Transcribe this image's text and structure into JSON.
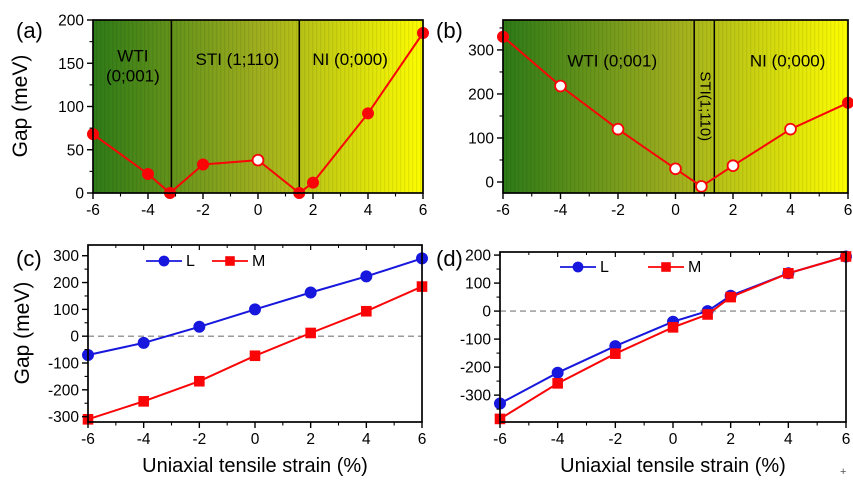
{
  "corner_artifact": "+",
  "colors": {
    "red_series": "#fa0507",
    "blue_series": "#1717dd",
    "gradient_left": "#2d7a17",
    "gradient_mid": "#9fae1e",
    "gradient_right": "#fdfd00",
    "axis": "#000000",
    "zero_dash": "#7a7a7a",
    "region_boundary": "#000000"
  },
  "chart_data": [
    {
      "id": "a",
      "panel_label": "(a)",
      "type": "line",
      "xlim": [
        -6,
        6
      ],
      "ylim": [
        0,
        200
      ],
      "xticks": [
        -6,
        -4,
        -2,
        0,
        2,
        4,
        6
      ],
      "yticks": [
        0,
        50,
        100,
        150,
        200
      ],
      "x_minor": 1,
      "y_minor": 25,
      "xlabel": "",
      "ylabel": "Gap (meV)",
      "gradient_bg": true,
      "top_ticks": false,
      "zero_line": false,
      "region_boundaries": [
        -3.15,
        1.5
      ],
      "annotations": [
        {
          "lines": [
            "WTI",
            "(0;001)"
          ],
          "x": -4.55,
          "y": 152,
          "rotate": 0
        },
        {
          "lines": [
            "STI (1;110)"
          ],
          "x": -0.75,
          "y": 148,
          "rotate": 0
        },
        {
          "lines": [
            "NI (0;000)"
          ],
          "x": 3.35,
          "y": 148,
          "rotate": 0
        }
      ],
      "series": [
        {
          "name": "Gap",
          "color": "red",
          "marker": "circle",
          "x": [
            -6,
            -4,
            -3.2,
            -2,
            0,
            1.5,
            2,
            4,
            6
          ],
          "y": [
            68,
            22,
            0,
            33,
            38,
            0,
            12,
            92,
            185
          ],
          "open": [
            4
          ]
        }
      ]
    },
    {
      "id": "b",
      "panel_label": "(b)",
      "type": "line",
      "xlim": [
        -6,
        6
      ],
      "ylim": [
        -25,
        368
      ],
      "xticks": [
        -6,
        -4,
        -2,
        0,
        2,
        4,
        6
      ],
      "yticks": [
        0,
        100,
        200,
        300
      ],
      "x_minor": 1,
      "y_minor": 50,
      "xlabel": "",
      "ylabel": "",
      "gradient_bg": true,
      "top_ticks": false,
      "zero_line": false,
      "region_boundaries": [
        0.65,
        1.35
      ],
      "annotations": [
        {
          "lines": [
            "WTI (0;001)"
          ],
          "x": -2.2,
          "y": 262,
          "rotate": 0
        },
        {
          "lines": [
            "STI(1;110)"
          ],
          "x": 1.0,
          "y": 172,
          "rotate": 90
        },
        {
          "lines": [
            "NI (0;000)"
          ],
          "x": 3.9,
          "y": 262,
          "rotate": 0
        }
      ],
      "series": [
        {
          "name": "Gap",
          "color": "red",
          "marker": "circle",
          "x": [
            -6,
            -4,
            -2,
            0,
            0.9,
            2,
            4,
            6
          ],
          "y": [
            330,
            218,
            120,
            30,
            -10,
            37,
            120,
            180
          ],
          "open": [
            1,
            2,
            3,
            4,
            5,
            6
          ]
        }
      ]
    },
    {
      "id": "c",
      "panel_label": "(c)",
      "type": "line",
      "xlim": [
        -6,
        6
      ],
      "ylim": [
        -320,
        340
      ],
      "xticks": [
        -6,
        -4,
        -2,
        0,
        2,
        4,
        6
      ],
      "yticks": [
        -300,
        -200,
        -100,
        0,
        100,
        200,
        300
      ],
      "x_minor": 1,
      "y_minor": 50,
      "xlabel": "Uniaxial tensile strain (%)",
      "ylabel": "Gap (meV)",
      "gradient_bg": false,
      "top_ticks": true,
      "zero_line": true,
      "region_boundaries": [],
      "annotations": [],
      "legend": {
        "items": [
          {
            "label": "L",
            "color": "blue",
            "marker": "circle"
          },
          {
            "label": "M",
            "color": "red",
            "marker": "square"
          }
        ]
      },
      "series": [
        {
          "name": "L",
          "color": "blue",
          "marker": "circle",
          "x": [
            -6,
            -4,
            -2,
            0,
            2,
            4,
            6
          ],
          "y": [
            -70,
            -25,
            35,
            100,
            163,
            223,
            290
          ],
          "open": []
        },
        {
          "name": "M",
          "color": "red",
          "marker": "square",
          "x": [
            -6,
            -4,
            -2,
            0,
            2,
            4,
            6
          ],
          "y": [
            -310,
            -243,
            -168,
            -73,
            12,
            93,
            185
          ],
          "open": []
        }
      ]
    },
    {
      "id": "d",
      "panel_label": "(d)",
      "type": "line",
      "xlim": [
        -6,
        6
      ],
      "ylim": [
        -396,
        211
      ],
      "xticks": [
        -6,
        -4,
        -2,
        0,
        2,
        4,
        6
      ],
      "yticks": [
        -300,
        -200,
        -100,
        0,
        100,
        200
      ],
      "x_minor": 1,
      "y_minor": 50,
      "xlabel": "Uniaxial tensile strain (%)",
      "ylabel": "",
      "gradient_bg": false,
      "top_ticks": true,
      "zero_line": true,
      "region_boundaries": [],
      "annotations": [],
      "legend": {
        "items": [
          {
            "label": "L",
            "color": "blue",
            "marker": "circle"
          },
          {
            "label": "M",
            "color": "red",
            "marker": "square"
          }
        ]
      },
      "series": [
        {
          "name": "L",
          "color": "blue",
          "marker": "circle",
          "x": [
            -6,
            -4,
            -2,
            0,
            1.2,
            2,
            4,
            6
          ],
          "y": [
            -330,
            -220,
            -125,
            -38,
            0,
            55,
            135,
            195
          ],
          "open": []
        },
        {
          "name": "M",
          "color": "red",
          "marker": "square",
          "x": [
            -6,
            -4,
            -2,
            0,
            1.2,
            2,
            4,
            6
          ],
          "y": [
            -385,
            -258,
            -152,
            -58,
            -12,
            50,
            135,
            195
          ],
          "open": []
        }
      ]
    }
  ]
}
